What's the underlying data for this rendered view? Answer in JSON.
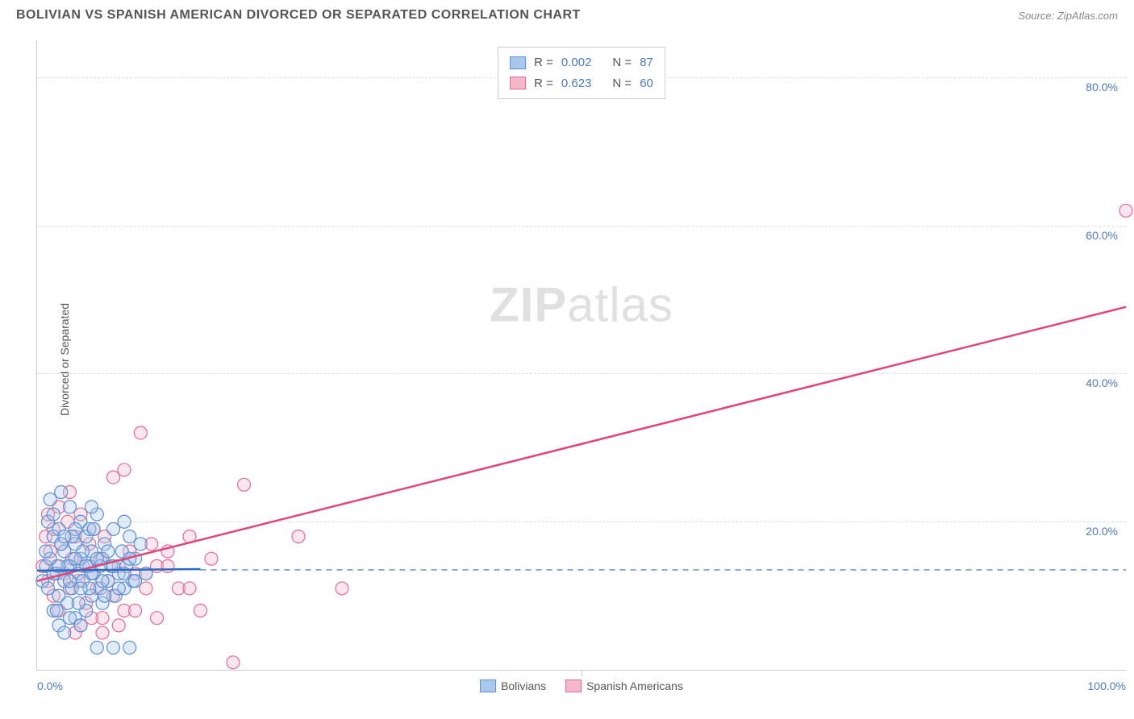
{
  "header": {
    "title": "BOLIVIAN VS SPANISH AMERICAN DIVORCED OR SEPARATED CORRELATION CHART",
    "source_prefix": "Source: ",
    "source_name": "ZipAtlas.com"
  },
  "chart": {
    "type": "scatter",
    "ylabel": "Divorced or Separated",
    "xlim": [
      0,
      100
    ],
    "ylim": [
      0,
      85
    ],
    "xtick_labels": [
      "0.0%",
      "100.0%"
    ],
    "ytick_values": [
      20,
      40,
      60,
      80
    ],
    "ytick_labels": [
      "20.0%",
      "40.0%",
      "60.0%",
      "80.0%"
    ],
    "grid_color": "#dddddd",
    "axis_color": "#cccccc",
    "background_color": "#ffffff",
    "marker_radius": 8,
    "marker_stroke_width": 1.2,
    "marker_fill_opacity": 0.35,
    "trendline_width": 2.5,
    "watermark_text_1": "ZIP",
    "watermark_text_2": "atlas",
    "reference_dash_y": 13.5,
    "reference_dash_color": "#6a8fc7"
  },
  "series": {
    "bolivians": {
      "label": "Bolivians",
      "color_fill": "#a8c8ec",
      "color_stroke": "#5b8fd6",
      "trendline_color": "#2f69c2",
      "R": "0.002",
      "N": "87",
      "trendline": {
        "x1": 0,
        "y1": 13.4,
        "x2": 15,
        "y2": 13.6
      },
      "points": [
        [
          0.5,
          12
        ],
        [
          0.8,
          14
        ],
        [
          1.0,
          11
        ],
        [
          1.2,
          15
        ],
        [
          1.5,
          8
        ],
        [
          1.5,
          18
        ],
        [
          1.8,
          13
        ],
        [
          2.0,
          10
        ],
        [
          2.0,
          19
        ],
        [
          2.2,
          24
        ],
        [
          2.5,
          12
        ],
        [
          2.5,
          16
        ],
        [
          2.8,
          9
        ],
        [
          3.0,
          14
        ],
        [
          3.0,
          22
        ],
        [
          3.2,
          11
        ],
        [
          3.5,
          7
        ],
        [
          3.5,
          17
        ],
        [
          3.8,
          13
        ],
        [
          4.0,
          15
        ],
        [
          4.0,
          20
        ],
        [
          4.2,
          12
        ],
        [
          4.5,
          8
        ],
        [
          4.5,
          18
        ],
        [
          4.8,
          14
        ],
        [
          5.0,
          10
        ],
        [
          5.0,
          16
        ],
        [
          5.2,
          13
        ],
        [
          5.5,
          21
        ],
        [
          5.5,
          3
        ],
        [
          5.8,
          11
        ],
        [
          6.0,
          15
        ],
        [
          6.0,
          9
        ],
        [
          6.2,
          17
        ],
        [
          6.5,
          12
        ],
        [
          6.8,
          14
        ],
        [
          7.0,
          3
        ],
        [
          7.0,
          19
        ],
        [
          7.2,
          10
        ],
        [
          7.5,
          13
        ],
        [
          7.8,
          16
        ],
        [
          8.0,
          11
        ],
        [
          8.0,
          20
        ],
        [
          8.2,
          14
        ],
        [
          8.5,
          18
        ],
        [
          8.5,
          3
        ],
        [
          8.8,
          12
        ],
        [
          9.0,
          15
        ],
        [
          9.5,
          17
        ],
        [
          10.0,
          13
        ],
        [
          1.0,
          20
        ],
        [
          1.2,
          23
        ],
        [
          1.5,
          21
        ],
        [
          2.0,
          6
        ],
        [
          2.5,
          5
        ],
        [
          3.0,
          7
        ],
        [
          3.5,
          19
        ],
        [
          4.0,
          6
        ],
        [
          4.8,
          19
        ],
        [
          5.0,
          22
        ],
        [
          1.8,
          8
        ],
        [
          2.2,
          17
        ],
        [
          2.8,
          14
        ],
        [
          3.2,
          18
        ],
        [
          3.8,
          9
        ],
        [
          4.2,
          16
        ],
        [
          4.8,
          11
        ],
        [
          5.2,
          19
        ],
        [
          5.8,
          14
        ],
        [
          6.2,
          10
        ],
        [
          0.8,
          16
        ],
        [
          1.5,
          13
        ],
        [
          2.0,
          14
        ],
        [
          2.5,
          18
        ],
        [
          3.0,
          12
        ],
        [
          3.5,
          15
        ],
        [
          4.0,
          11
        ],
        [
          4.5,
          14
        ],
        [
          5.0,
          13
        ],
        [
          5.5,
          15
        ],
        [
          6.0,
          12
        ],
        [
          6.5,
          16
        ],
        [
          7.0,
          14
        ],
        [
          7.5,
          11
        ],
        [
          8.0,
          13
        ],
        [
          8.5,
          15
        ],
        [
          9.0,
          12
        ]
      ]
    },
    "spanish_americans": {
      "label": "Spanish Americans",
      "color_fill": "#f5b8cb",
      "color_stroke": "#e56a92",
      "trendline_color": "#e04578",
      "R": "0.623",
      "N": "60",
      "trendline": {
        "x1": 0,
        "y1": 12,
        "x2": 100,
        "y2": 49
      },
      "points": [
        [
          0.5,
          14
        ],
        [
          0.8,
          18
        ],
        [
          1.0,
          12
        ],
        [
          1.0,
          21
        ],
        [
          1.2,
          16
        ],
        [
          1.5,
          10
        ],
        [
          1.5,
          19
        ],
        [
          1.8,
          14
        ],
        [
          2.0,
          22
        ],
        [
          2.0,
          8
        ],
        [
          2.2,
          17
        ],
        [
          2.5,
          13
        ],
        [
          2.8,
          20
        ],
        [
          3.0,
          11
        ],
        [
          3.0,
          24
        ],
        [
          3.2,
          15
        ],
        [
          3.5,
          18
        ],
        [
          3.8,
          12
        ],
        [
          4.0,
          21
        ],
        [
          4.2,
          14
        ],
        [
          4.5,
          9
        ],
        [
          4.8,
          17
        ],
        [
          5.0,
          13
        ],
        [
          5.2,
          19
        ],
        [
          5.5,
          11
        ],
        [
          5.8,
          15
        ],
        [
          6.0,
          7
        ],
        [
          6.2,
          18
        ],
        [
          6.5,
          12
        ],
        [
          7.0,
          26
        ],
        [
          7.0,
          10
        ],
        [
          7.5,
          14
        ],
        [
          8.0,
          27
        ],
        [
          8.0,
          8
        ],
        [
          8.5,
          16
        ],
        [
          9.0,
          13
        ],
        [
          9.5,
          32
        ],
        [
          10.0,
          11
        ],
        [
          10.5,
          17
        ],
        [
          11.0,
          14
        ],
        [
          12.0,
          16
        ],
        [
          13.0,
          11
        ],
        [
          14.0,
          18
        ],
        [
          15.0,
          8
        ],
        [
          16.0,
          15
        ],
        [
          18.0,
          1
        ],
        [
          19.0,
          25
        ],
        [
          24.0,
          18
        ],
        [
          28.0,
          11
        ],
        [
          3.5,
          5
        ],
        [
          4.0,
          6
        ],
        [
          5.0,
          7
        ],
        [
          6.0,
          5
        ],
        [
          7.5,
          6
        ],
        [
          9.0,
          8
        ],
        [
          10.0,
          13
        ],
        [
          11.0,
          7
        ],
        [
          12.0,
          14
        ],
        [
          14.0,
          11
        ],
        [
          100.0,
          62
        ]
      ]
    }
  },
  "stat_legend": {
    "R_label": "R =",
    "N_label": "N ="
  }
}
